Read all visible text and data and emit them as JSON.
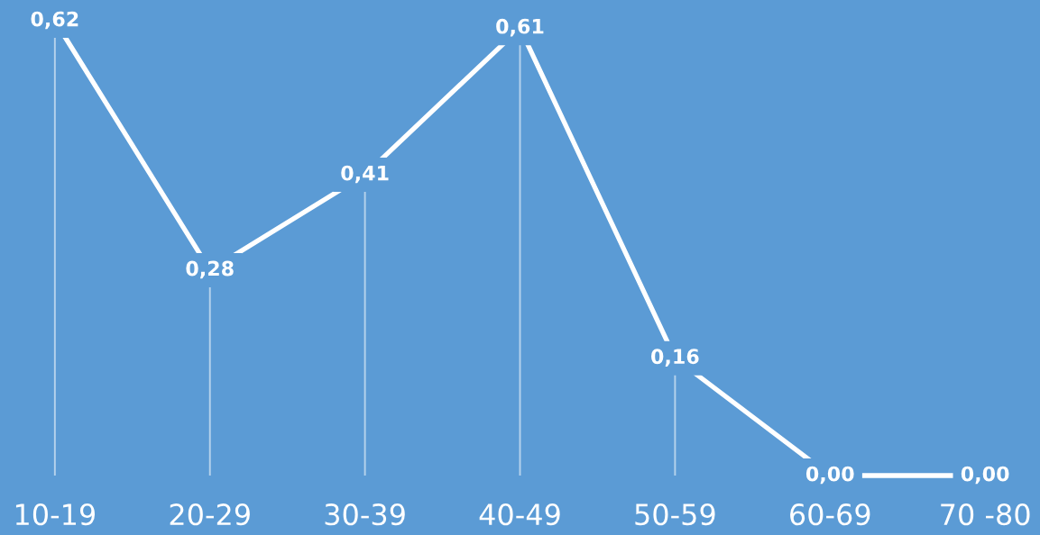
{
  "chart_data": {
    "type": "line",
    "categories": [
      "10-19",
      "20-29",
      "30-39",
      "40-49",
      "50-59",
      "60-69",
      "70 -80"
    ],
    "series": [
      {
        "color": "#ffffff",
        "values": [
          0.62,
          0.28,
          0.41,
          0.61,
          0.16,
          0.0,
          0.0
        ],
        "value_labels": [
          "0,62",
          "0,28",
          "0,41",
          "0,61",
          "0,16",
          "0,00",
          "0,00"
        ]
      }
    ],
    "tick_labels": "x"
  }
}
